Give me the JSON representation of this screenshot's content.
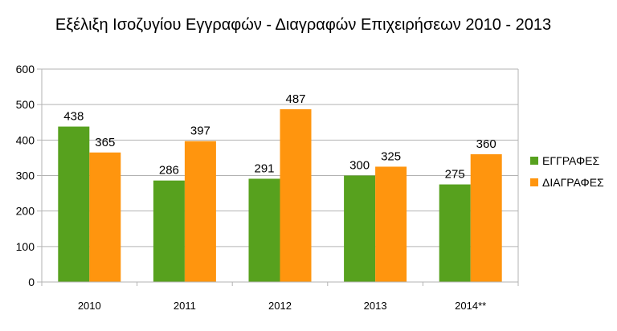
{
  "chart_data": {
    "type": "bar",
    "title": "Εξέλιξη Ισοζυγίου Εγγραφών - Διαγραφών Επιχειρήσεων 2010 - 2013",
    "categories": [
      "2010",
      "2011",
      "2012",
      "2013",
      "2014**"
    ],
    "series": [
      {
        "name": "ΕΓΓΡΑΦΕΣ",
        "values": [
          438,
          286,
          291,
          300,
          275
        ],
        "color": "#57a11e"
      },
      {
        "name": "ΔΙΑΓΡΑΦΕΣ",
        "values": [
          365,
          397,
          487,
          325,
          360
        ],
        "color": "#ff950e"
      }
    ],
    "ylim": [
      0,
      600
    ],
    "yticks": [
      "0",
      "100",
      "200",
      "300",
      "400",
      "500",
      "600"
    ],
    "grid": true,
    "legend": "right",
    "data_labels": true
  }
}
